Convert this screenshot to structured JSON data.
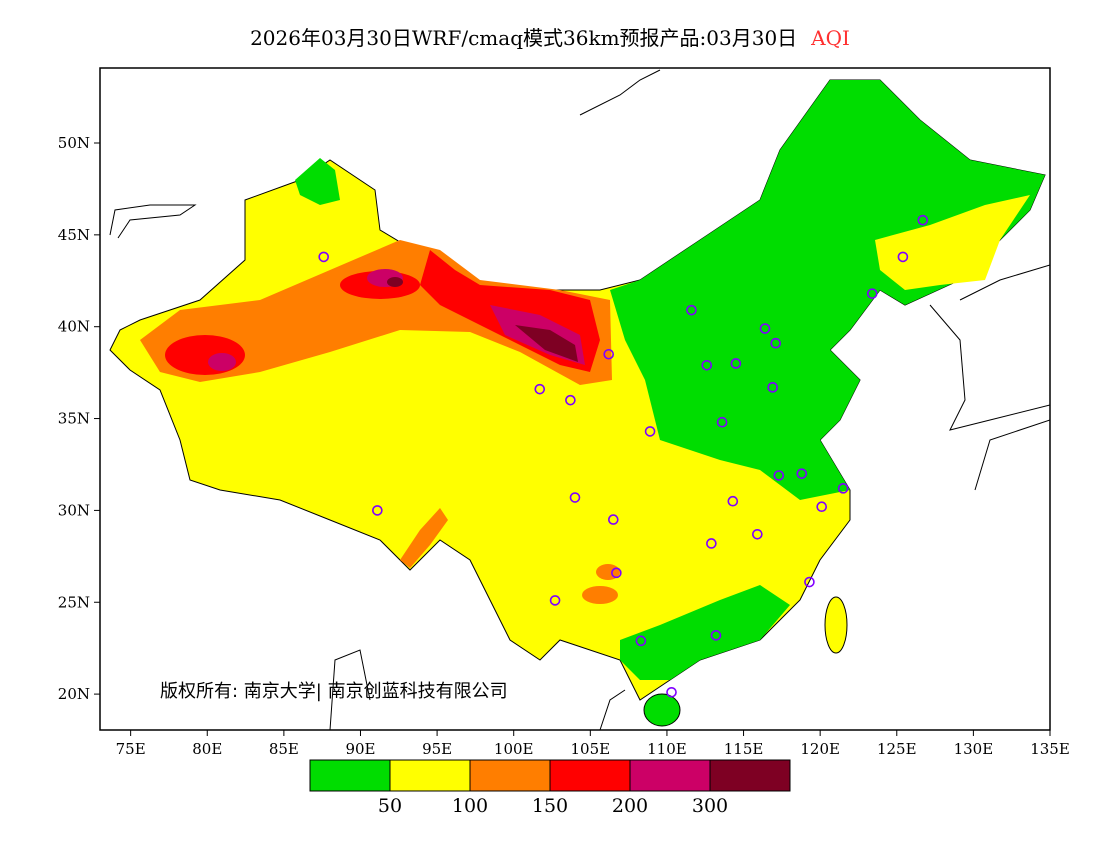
{
  "title": {
    "main": "2026年03月30日WRF/cmaq模式36km预报产品:03月30日",
    "variable": "AQI"
  },
  "copyright": "版权所有: 南京大学| 南京创蓝科技有限公司",
  "chart_data": {
    "type": "map",
    "lon_range": [
      73,
      135
    ],
    "lat_range": [
      18,
      54
    ],
    "x_ticks": [
      "75E",
      "80E",
      "85E",
      "90E",
      "95E",
      "100E",
      "105E",
      "110E",
      "115E",
      "120E",
      "125E",
      "130E",
      "135E"
    ],
    "x_tick_values": [
      75,
      80,
      85,
      90,
      95,
      100,
      105,
      110,
      115,
      120,
      125,
      130,
      135
    ],
    "y_ticks": [
      "20N",
      "25N",
      "30N",
      "35N",
      "40N",
      "45N",
      "50N"
    ],
    "y_tick_values": [
      20,
      25,
      30,
      35,
      40,
      45,
      50
    ],
    "colorbar": {
      "colors": [
        "#00dd00",
        "#ffff00",
        "#ff7e00",
        "#ff0000",
        "#cc0066",
        "#7e0023"
      ],
      "labels": [
        "50",
        "100",
        "150",
        "200",
        "300"
      ]
    },
    "stations": [
      [
        87.6,
        43.8
      ],
      [
        91.1,
        30.0
      ],
      [
        101.7,
        36.6
      ],
      [
        103.7,
        36.0
      ],
      [
        106.2,
        38.5
      ],
      [
        111.6,
        40.9
      ],
      [
        116.4,
        39.9
      ],
      [
        117.1,
        39.1
      ],
      [
        114.5,
        38.0
      ],
      [
        112.6,
        37.9
      ],
      [
        116.9,
        36.7
      ],
      [
        113.6,
        34.8
      ],
      [
        108.9,
        34.3
      ],
      [
        104.0,
        30.7
      ],
      [
        106.5,
        29.5
      ],
      [
        106.7,
        26.6
      ],
      [
        102.7,
        25.1
      ],
      [
        108.3,
        22.9
      ],
      [
        110.3,
        20.1
      ],
      [
        113.2,
        23.2
      ],
      [
        112.9,
        28.2
      ],
      [
        115.9,
        28.7
      ],
      [
        114.3,
        30.5
      ],
      [
        117.3,
        31.9
      ],
      [
        118.8,
        32.0
      ],
      [
        120.1,
        30.2
      ],
      [
        121.5,
        31.2
      ],
      [
        119.3,
        26.1
      ],
      [
        123.4,
        41.8
      ],
      [
        125.4,
        43.8
      ],
      [
        126.7,
        45.8
      ]
    ]
  }
}
